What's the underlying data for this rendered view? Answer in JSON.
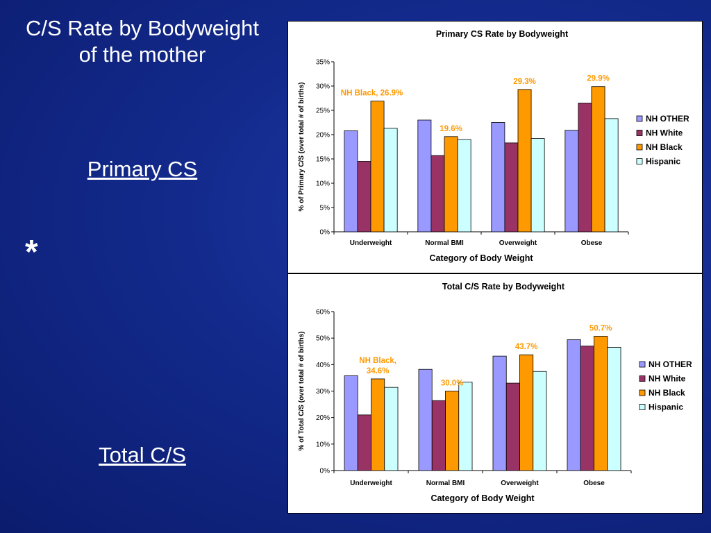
{
  "slide": {
    "title_line1": "C/S Rate by Bodyweight",
    "title_line2": "of the mother",
    "primary_label": "Primary CS",
    "asterisk": "*",
    "total_label": "Total C/S"
  },
  "colors": {
    "NH OTHER": "#9999ff",
    "NH White": "#993366",
    "NH Black": "#ff9900",
    "Hispanic": "#ccffff",
    "annotation": "#ff9900"
  },
  "chart_data": [
    {
      "type": "bar",
      "title": "Primary CS Rate by Bodyweight",
      "xlabel": "Category of Body Weight",
      "ylabel": "% of Primary C/S (over total # of births)",
      "categories": [
        "Underweight",
        "Normal BMI",
        "Overweight",
        "Obese"
      ],
      "ylim": [
        0,
        35
      ],
      "yticks": [
        "0%",
        "5%",
        "10%",
        "15%",
        "20%",
        "25%",
        "30%",
        "35%"
      ],
      "ytick_values": [
        0,
        5,
        10,
        15,
        20,
        25,
        30,
        35
      ],
      "legend_position": "right",
      "series": [
        {
          "name": "NH OTHER",
          "values": [
            20.8,
            23.0,
            22.5,
            20.9
          ]
        },
        {
          "name": "NH White",
          "values": [
            14.5,
            15.7,
            18.3,
            26.5
          ]
        },
        {
          "name": "NH Black",
          "values": [
            26.9,
            19.6,
            29.3,
            29.9
          ]
        },
        {
          "name": "Hispanic",
          "values": [
            21.3,
            19.0,
            19.2,
            23.3
          ]
        }
      ],
      "annotations": [
        {
          "series": "NH Black",
          "category": "Underweight",
          "lines": [
            "NH Black, 26.9%"
          ]
        },
        {
          "series": "NH Black",
          "category": "Normal BMI",
          "lines": [
            "19.6%"
          ]
        },
        {
          "series": "NH Black",
          "category": "Overweight",
          "lines": [
            "29.3%"
          ]
        },
        {
          "series": "NH Black",
          "category": "Obese",
          "lines": [
            "29.9%"
          ]
        }
      ]
    },
    {
      "type": "bar",
      "title": "Total C/S Rate by Bodyweight",
      "xlabel": "Category of Body Weight",
      "ylabel": "% of Total C/S (over total # of births)",
      "categories": [
        "Underweight",
        "Normal BMI",
        "Overweight",
        "Obese"
      ],
      "ylim": [
        0,
        60
      ],
      "yticks": [
        "0%",
        "10%",
        "20%",
        "30%",
        "40%",
        "50%",
        "60%"
      ],
      "ytick_values": [
        0,
        10,
        20,
        30,
        40,
        50,
        60
      ],
      "legend_position": "right",
      "series": [
        {
          "name": "NH OTHER",
          "values": [
            35.8,
            38.2,
            43.2,
            49.4
          ]
        },
        {
          "name": "NH White",
          "values": [
            21.0,
            26.4,
            33.0,
            47.0
          ]
        },
        {
          "name": "NH Black",
          "values": [
            34.6,
            30.0,
            43.7,
            50.7
          ]
        },
        {
          "name": "Hispanic",
          "values": [
            31.4,
            33.4,
            37.4,
            46.5
          ]
        }
      ],
      "annotations": [
        {
          "series": "NH Black",
          "category": "Underweight",
          "lines": [
            "NH Black,",
            "34.6%"
          ]
        },
        {
          "series": "NH Black",
          "category": "Normal BMI",
          "lines": [
            "30.0%"
          ]
        },
        {
          "series": "NH Black",
          "category": "Overweight",
          "lines": [
            "43.7%"
          ]
        },
        {
          "series": "NH Black",
          "category": "Obese",
          "lines": [
            "50.7%"
          ]
        }
      ]
    }
  ]
}
